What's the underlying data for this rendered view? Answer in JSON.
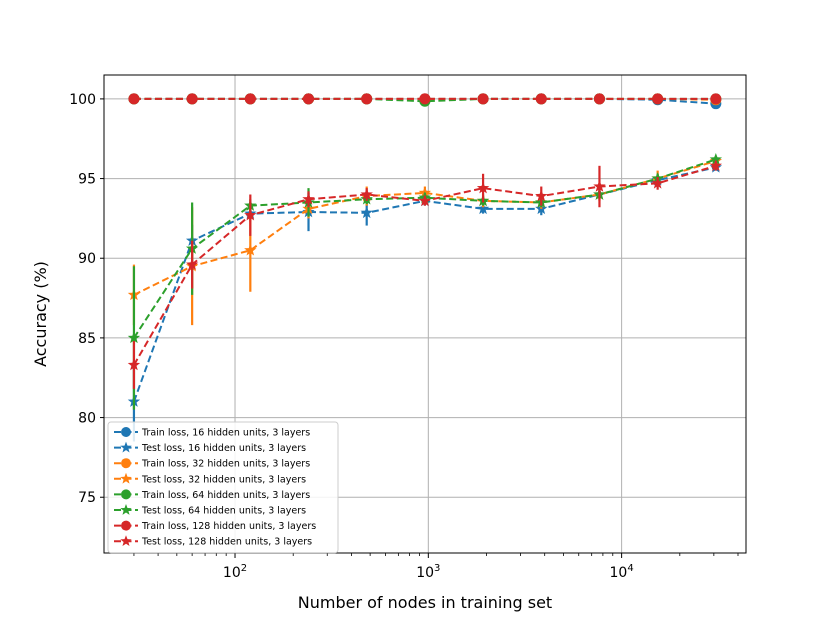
{
  "chart_data": {
    "type": "line",
    "title": "",
    "xlabel": "Number of nodes in training set",
    "ylabel": "Accuracy (%)",
    "xscale": "log",
    "xlim": [
      21,
      44000
    ],
    "ylim": [
      71.5,
      101.5
    ],
    "yticks": [
      75,
      80,
      85,
      90,
      95,
      100
    ],
    "xticks": [
      {
        "value": 100,
        "base": "10",
        "exp": "2"
      },
      {
        "value": 1000,
        "base": "10",
        "exp": "3"
      },
      {
        "value": 10000,
        "base": "10",
        "exp": "4"
      }
    ],
    "grid": true,
    "legend_position": "lower-left",
    "x": [
      30,
      60,
      120,
      240,
      480,
      960,
      1920,
      3840,
      7680,
      15360,
      30720
    ],
    "series": [
      {
        "name": "Train loss, 16 hidden units, 3 layers",
        "color": "#1f77b4",
        "marker": "circle",
        "values": [
          100,
          100,
          100,
          100,
          100,
          100,
          100,
          100,
          100,
          99.95,
          99.7
        ],
        "errors": [
          0,
          0,
          0,
          0,
          0,
          0,
          0,
          0,
          0,
          0,
          0
        ]
      },
      {
        "name": "Test loss, 16 hidden units, 3 layers",
        "color": "#1f77b4",
        "marker": "star",
        "values": [
          81.0,
          91.1,
          92.8,
          92.9,
          92.85,
          93.6,
          93.1,
          93.1,
          94.0,
          94.9,
          95.7
        ],
        "errors": [
          2.5,
          1.0,
          0.5,
          1.2,
          0.8,
          0.3,
          0.3,
          0.4,
          0.3,
          0.3,
          0.2
        ]
      },
      {
        "name": "Train loss, 32 hidden units, 3 layers",
        "color": "#ff7f0e",
        "marker": "circle",
        "values": [
          100,
          100,
          100,
          100,
          100,
          100,
          100,
          100,
          100,
          100,
          99.95
        ],
        "errors": [
          0,
          0,
          0,
          0,
          0,
          0,
          0,
          0,
          0,
          0,
          0
        ]
      },
      {
        "name": "Test loss, 32 hidden units, 3 layers",
        "color": "#ff7f0e",
        "marker": "star",
        "values": [
          87.7,
          89.5,
          90.5,
          93.1,
          93.9,
          94.1,
          93.6,
          93.5,
          94.0,
          95.0,
          96.1
        ],
        "errors": [
          1.9,
          3.7,
          2.6,
          0.6,
          0.6,
          0.4,
          0.4,
          0.4,
          0.4,
          0.5,
          0.3
        ]
      },
      {
        "name": "Train loss, 64 hidden units, 3 layers",
        "color": "#2ca02c",
        "marker": "circle",
        "values": [
          100,
          100,
          100,
          100,
          100,
          99.85,
          100,
          100,
          100,
          100,
          100
        ],
        "errors": [
          0,
          0,
          0,
          0,
          0,
          0,
          0,
          0,
          0,
          0,
          0
        ]
      },
      {
        "name": "Test loss, 64 hidden units, 3 layers",
        "color": "#2ca02c",
        "marker": "star",
        "values": [
          85.0,
          90.6,
          93.3,
          93.5,
          93.7,
          93.8,
          93.6,
          93.5,
          94.0,
          95.0,
          96.2
        ],
        "errors": [
          4.5,
          2.9,
          0.4,
          0.9,
          0.3,
          0.3,
          0.3,
          0.3,
          0.3,
          0.3,
          0.2
        ]
      },
      {
        "name": "Train loss, 128 hidden units, 3 layers",
        "color": "#d62728",
        "marker": "circle",
        "values": [
          100,
          100,
          100,
          100,
          100,
          100,
          100,
          100,
          100,
          100,
          100
        ],
        "errors": [
          0,
          0,
          0,
          0,
          0,
          0,
          0,
          0,
          0,
          0,
          0
        ]
      },
      {
        "name": "Test loss, 128 hidden units, 3 layers",
        "color": "#d62728",
        "marker": "star",
        "values": [
          83.3,
          89.6,
          92.7,
          93.7,
          94.0,
          93.6,
          94.4,
          93.9,
          94.5,
          94.7,
          95.8
        ],
        "errors": [
          1.5,
          1.5,
          1.3,
          0.5,
          0.4,
          0.3,
          0.9,
          0.6,
          1.3,
          0.4,
          0.3
        ]
      }
    ]
  }
}
